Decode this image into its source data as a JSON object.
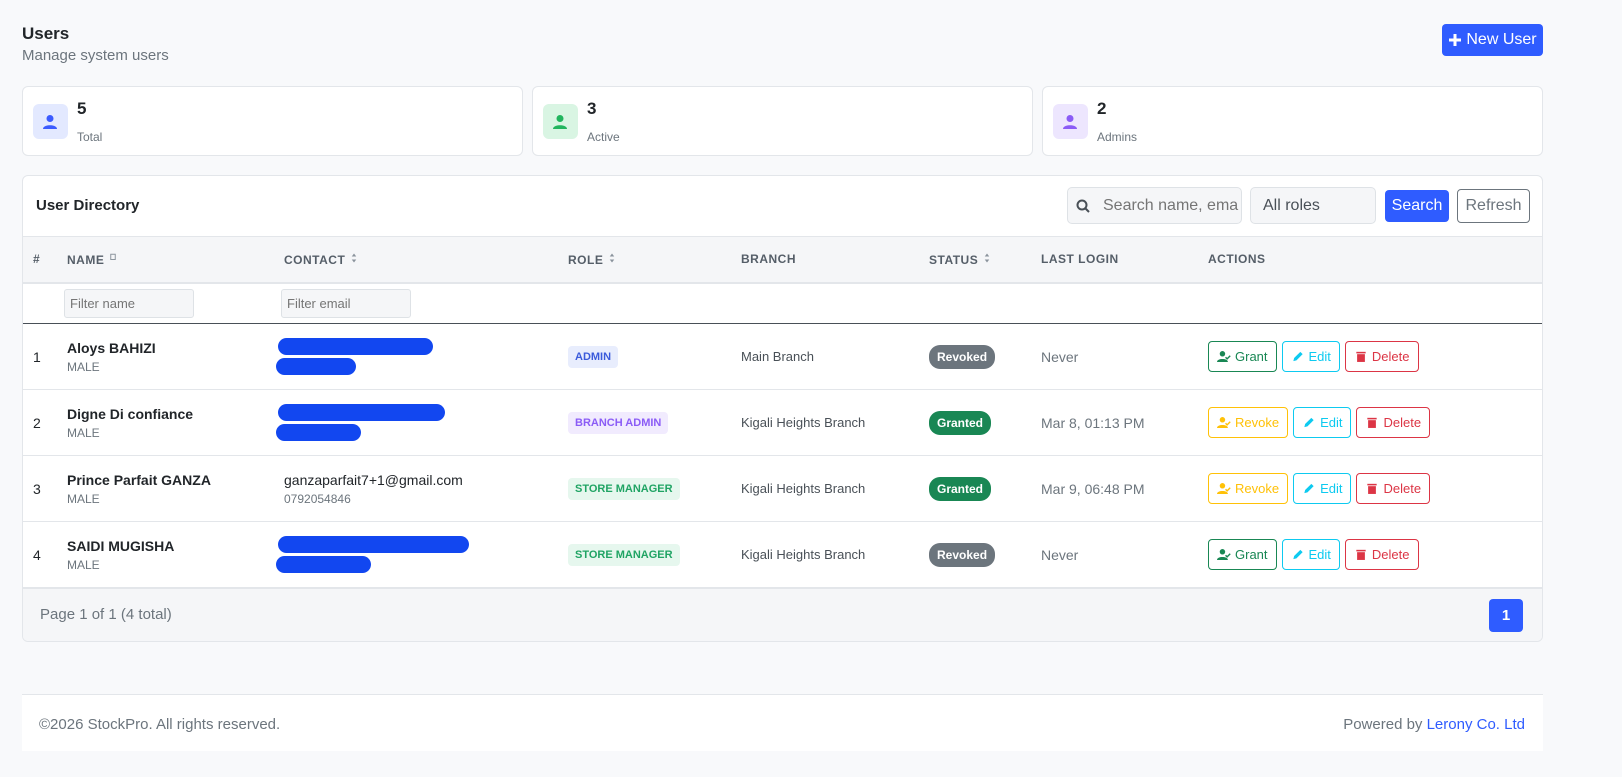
{
  "header": {
    "title": "Users",
    "subtitle": "Manage system users",
    "new_button": "New User"
  },
  "stats": [
    {
      "value": 5,
      "label": "Total"
    },
    {
      "value": 3,
      "label": "Active"
    },
    {
      "value": 2,
      "label": "Admins"
    }
  ],
  "directory": {
    "title": "User Directory",
    "search_placeholder": "Search name, ema",
    "role_filter": "All roles",
    "search_button": "Search",
    "refresh_button": "Refresh"
  },
  "table": {
    "columns": [
      "#",
      "NAME",
      "CONTACT",
      "ROLE",
      "BRANCH",
      "STATUS",
      "LAST LOGIN",
      "ACTIONS"
    ],
    "filters": [
      "Filter name",
      "Filter email"
    ],
    "rows": [
      {
        "index": 1,
        "name": "Aloys BAHIZI",
        "gender": "MALE",
        "role": {
          "label": "ADMIN",
          "color": "#3b5bdb",
          "background": "#e8edfd"
        },
        "branch": "Main Branch",
        "status": {
          "label": "Revoked",
          "color": "#6c757d"
        },
        "last_login": "Never",
        "actions": [
          {
            "label": "Grant",
            "color": "#198754"
          },
          {
            "label": "Edit",
            "color": "#0dcaf0"
          },
          {
            "label": "Delete",
            "color": "#dc3545"
          }
        ]
      },
      {
        "index": 2,
        "name": "Digne Di confiance",
        "gender": "MALE",
        "role": {
          "label": "BRANCH ADMIN",
          "color": "#8b5cf6",
          "background": "#f1ebfe"
        },
        "branch": "Kigali Heights Branch",
        "status": {
          "label": "Granted",
          "color": "#198754"
        },
        "last_login": "Mar 8, 01:13 PM",
        "actions": [
          {
            "label": "Revoke",
            "color": "#ffc107"
          },
          {
            "label": "Edit",
            "color": "#0dcaf0"
          },
          {
            "label": "Delete",
            "color": "#dc3545"
          }
        ]
      },
      {
        "index": 3,
        "name": "Prince Parfait GANZA",
        "gender": "MALE",
        "email": "ganzaparfait7+1@gmail.com",
        "phone": "0792054846",
        "role": {
          "label": "STORE MANAGER",
          "color": "#20a464",
          "background": "#e6f7ee"
        },
        "branch": "Kigali Heights Branch",
        "status": {
          "label": "Granted",
          "color": "#198754"
        },
        "last_login": "Mar 9, 06:48 PM",
        "actions": [
          {
            "label": "Revoke",
            "color": "#ffc107"
          },
          {
            "label": "Edit",
            "color": "#0dcaf0"
          },
          {
            "label": "Delete",
            "color": "#dc3545"
          }
        ]
      },
      {
        "index": 4,
        "name": "SAIDI MUGISHA",
        "gender": "MALE",
        "role": {
          "label": "STORE MANAGER",
          "color": "#20a464",
          "background": "#e6f7ee"
        },
        "branch": "Kigali Heights Branch",
        "status": {
          "label": "Revoked",
          "color": "#6c757d"
        },
        "last_login": "Never",
        "actions": [
          {
            "label": "Grant",
            "color": "#198754"
          },
          {
            "label": "Edit",
            "color": "#0dcaf0"
          },
          {
            "label": "Delete",
            "color": "#dc3545"
          }
        ]
      }
    ]
  },
  "pagination": {
    "summary": "Page 1 of 1 (4 total)",
    "page": 1
  },
  "footer": {
    "copyright": "©2026 StockPro. All rights reserved.",
    "powered_by": "Powered by",
    "company": "Lerony Co. Ltd"
  }
}
